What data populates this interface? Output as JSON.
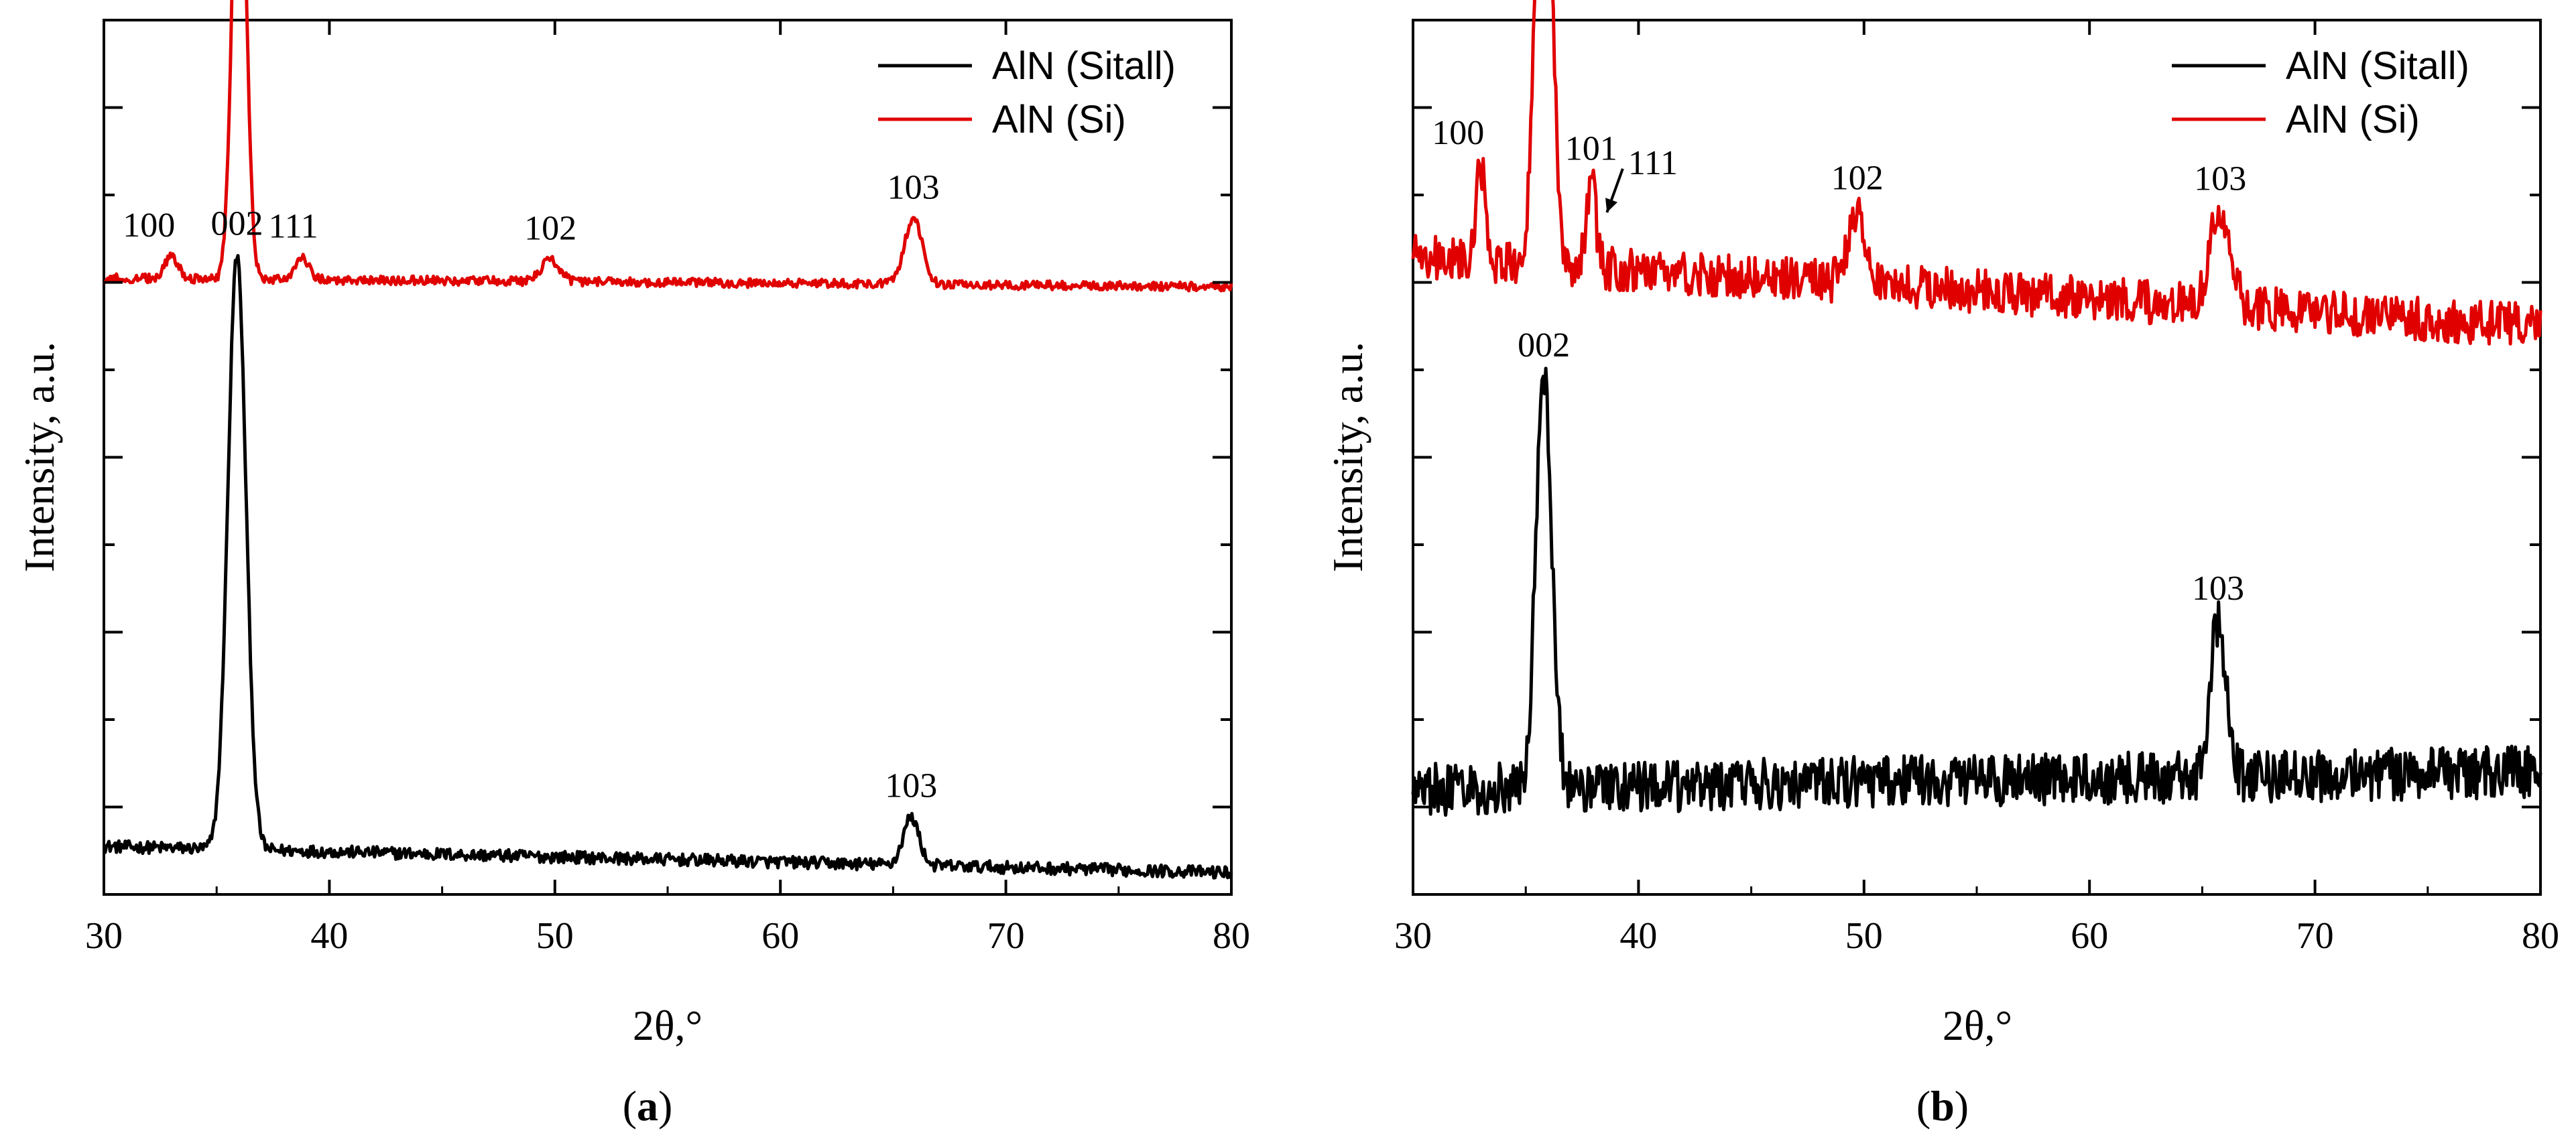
{
  "chart_data": [
    {
      "type": "line",
      "panel_label": "(a)",
      "panel_letter": "a",
      "xlabel": "2θ,°",
      "ylabel": "Intensity, a.u.",
      "xlim": [
        30,
        80
      ],
      "ylim": [
        0,
        10
      ],
      "xticks": [
        30,
        40,
        50,
        60,
        70,
        80
      ],
      "tick_labels": [
        "30",
        "40",
        "50",
        "60",
        "70",
        "80"
      ],
      "legend": {
        "position": "top-right",
        "entries": [
          {
            "name": "AlN (Sitall)",
            "color": "#000000"
          },
          {
            "name": "AlN (Si)",
            "color": "#e00000"
          }
        ]
      },
      "series": [
        {
          "name": "AlN (Sitall)",
          "color": "#000000",
          "baseline_start": 0.55,
          "baseline_end": 0.25,
          "noise": 0.07,
          "peaks": [
            {
              "label": "002",
              "x": 35.9,
              "height": 6.8,
              "width": 0.4
            },
            {
              "label": "103",
              "x": 65.8,
              "height": 0.55,
              "width": 0.35
            }
          ]
        },
        {
          "name": "AlN (Si)",
          "color": "#e00000",
          "baseline_start": 7.05,
          "baseline_end": 6.95,
          "noise": 0.05,
          "peaks": [
            {
              "label": "100",
              "x": 33.0,
              "height": 0.25,
              "width": 0.3
            },
            {
              "label": "002",
              "x": 36.0,
              "height": 5.8,
              "width": 0.3
            },
            {
              "label": "111",
              "x": 38.8,
              "height": 0.25,
              "width": 0.3
            },
            {
              "label": "102",
              "x": 49.8,
              "height": 0.25,
              "width": 0.4
            },
            {
              "label": "103",
              "x": 65.9,
              "height": 0.75,
              "width": 0.4
            }
          ]
        }
      ]
    },
    {
      "type": "line",
      "panel_label": "(b)",
      "panel_letter": "b",
      "xlabel": "2θ,°",
      "ylabel": "Intensity, a.u.",
      "xlim": [
        30,
        80
      ],
      "ylim": [
        0,
        10
      ],
      "xticks": [
        30,
        40,
        50,
        60,
        70,
        80
      ],
      "tick_labels": [
        "30",
        "40",
        "50",
        "60",
        "70",
        "80"
      ],
      "arrow_annotation": {
        "label": "111",
        "from_x": 39.3,
        "from_y": 8.3,
        "to_x": 38.6,
        "to_y": 7.8
      },
      "legend": {
        "position": "top-right",
        "entries": [
          {
            "name": "AlN (Sitall)",
            "color": "#000000"
          },
          {
            "name": "AlN (Si)",
            "color": "#e00000"
          }
        ]
      },
      "series": [
        {
          "name": "AlN (Sitall)",
          "color": "#000000",
          "baseline_start": 1.2,
          "baseline_end": 1.4,
          "noise": 0.3,
          "peaks": [
            {
              "label": "002",
              "x": 35.8,
              "height": 4.7,
              "width": 0.35
            },
            {
              "label": "103",
              "x": 65.7,
              "height": 1.8,
              "width": 0.35
            }
          ]
        },
        {
          "name": "AlN (Si)",
          "color": "#e00000",
          "baseline_start": 7.3,
          "baseline_end": 6.5,
          "noise": 0.25,
          "peaks": [
            {
              "label": "100",
              "x": 33.0,
              "height": 1.1,
              "width": 0.2
            },
            {
              "label": "002",
              "x": 35.8,
              "height": 5.9,
              "width": 0.35
            },
            {
              "label": "101",
              "x": 37.9,
              "height": 1.0,
              "width": 0.2
            },
            {
              "label": "102",
              "x": 49.7,
              "height": 0.85,
              "width": 0.4
            },
            {
              "label": "103",
              "x": 65.8,
              "height": 1.1,
              "width": 0.45
            }
          ]
        }
      ]
    }
  ]
}
